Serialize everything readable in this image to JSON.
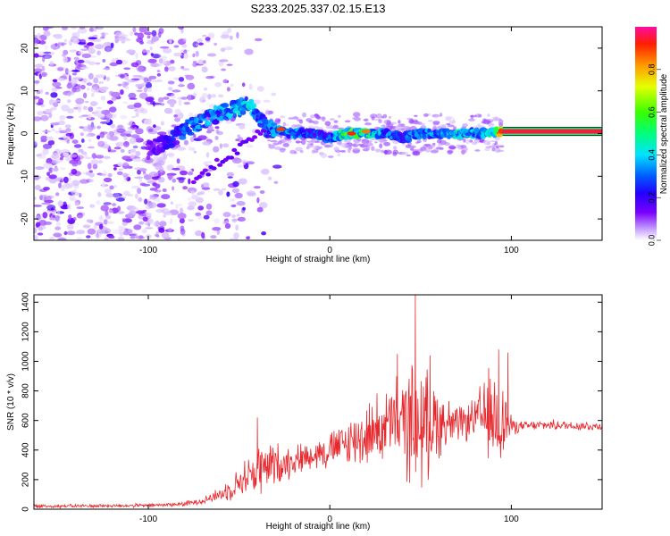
{
  "title": "S233.2025.337.02.15.E13",
  "colors": {
    "snr_line": "#e8282d",
    "ridge_low": "#6a0cff",
    "ridge_high": "#ff1e1e",
    "scatter": "#a070f0"
  },
  "chart_data": [
    {
      "type": "heatmap",
      "name": "spectrogram",
      "xlabel": "Height of straight line (km)",
      "ylabel": "Frequency (Hz)",
      "xlim": [
        -163,
        150
      ],
      "ylim": [
        -25,
        25
      ],
      "xticks": [
        -100,
        0,
        100
      ],
      "xtick_labels": [
        "-100",
        "0",
        "100"
      ],
      "yticks": [
        -20,
        -10,
        0,
        10,
        20
      ],
      "ytick_labels": [
        "-20",
        "-10",
        "0",
        "10",
        "20"
      ],
      "colorbar": {
        "label": "Normalized spectral amplitude",
        "range": [
          0,
          1
        ],
        "ticks": [
          0,
          0.2,
          0.4,
          0.6,
          0.8
        ],
        "tick_labels": [
          "0.0",
          "0.2",
          "0.4",
          "0.6",
          "0.8"
        ]
      },
      "ridge": {
        "x": [
          -100,
          -90,
          -80,
          -70,
          -60,
          -50,
          -45,
          -40,
          -35,
          -30,
          -20,
          -10,
          0,
          10,
          20,
          30,
          40,
          50,
          60,
          70,
          80,
          90,
          95,
          100,
          120,
          150
        ],
        "y": [
          -4,
          -2,
          1,
          3,
          5,
          6,
          7,
          5,
          1,
          1,
          0,
          0,
          -1,
          0,
          0,
          0,
          -1,
          0,
          0,
          0,
          0,
          0,
          0.5,
          0.5,
          0.5,
          0.5
        ],
        "amplitude": [
          0.15,
          0.2,
          0.3,
          0.35,
          0.35,
          0.4,
          0.45,
          0.35,
          0.3,
          0.4,
          0.35,
          0.3,
          0.3,
          0.6,
          0.5,
          0.35,
          0.3,
          0.35,
          0.35,
          0.4,
          0.4,
          0.45,
          0.95,
          0.95,
          0.95,
          0.95
        ]
      }
    },
    {
      "type": "line",
      "name": "snr",
      "xlabel": "Height of straight line (km)",
      "ylabel": "SNR (10 * v/v)",
      "xlim": [
        -163,
        150
      ],
      "ylim": [
        0,
        1450
      ],
      "xticks": [
        -100,
        0,
        100
      ],
      "xtick_labels": [
        "-100",
        "0",
        "100"
      ],
      "yticks": [
        0,
        200,
        400,
        600,
        800,
        1000,
        1200,
        1400
      ],
      "ytick_labels": [
        "0",
        "200",
        "400",
        "600",
        "800",
        "1000",
        "1200",
        "1400"
      ],
      "envelope": {
        "x": [
          -163,
          -100,
          -80,
          -70,
          -60,
          -50,
          -45,
          -40,
          -35,
          -30,
          -20,
          -10,
          0,
          10,
          20,
          30,
          40,
          45,
          50,
          60,
          70,
          80,
          85,
          90,
          95,
          100,
          105,
          120,
          150
        ],
        "base": [
          20,
          25,
          35,
          60,
          100,
          180,
          230,
          260,
          280,
          300,
          330,
          370,
          400,
          450,
          500,
          560,
          580,
          600,
          560,
          600,
          560,
          620,
          620,
          620,
          600,
          560,
          560,
          570,
          560
        ],
        "spread": [
          15,
          15,
          20,
          30,
          60,
          120,
          160,
          220,
          220,
          180,
          120,
          120,
          150,
          200,
          250,
          300,
          400,
          500,
          500,
          300,
          150,
          150,
          350,
          400,
          400,
          80,
          40,
          40,
          40
        ]
      },
      "peaks": [
        {
          "x": -40,
          "y": 620
        },
        {
          "x": 37,
          "y": 1050
        },
        {
          "x": 47,
          "y": 1450
        },
        {
          "x": 55,
          "y": 1040
        },
        {
          "x": 93,
          "y": 1080
        },
        {
          "x": 98,
          "y": 1060
        }
      ]
    }
  ]
}
